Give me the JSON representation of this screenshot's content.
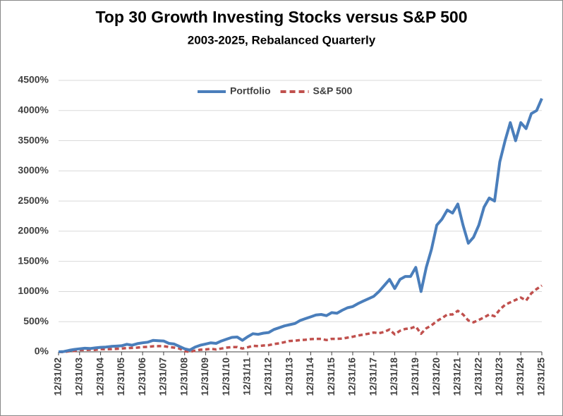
{
  "chart_data": {
    "type": "line",
    "title": "Top 30 Growth Investing Stocks versus S&P 500",
    "subtitle": "2003-2025, Rebalanced Quarterly",
    "categories": [
      "12/31/02",
      null,
      null,
      null,
      "12/31/03",
      null,
      null,
      null,
      "12/31/04",
      null,
      null,
      null,
      "12/31/05",
      null,
      null,
      null,
      "12/31/06",
      null,
      null,
      null,
      "12/31/07",
      null,
      null,
      null,
      "12/31/08",
      null,
      null,
      null,
      "12/31/09",
      null,
      null,
      null,
      "12/31/10",
      null,
      null,
      null,
      "12/31/11",
      null,
      null,
      null,
      "12/31/12",
      null,
      null,
      null,
      "12/31/13",
      null,
      null,
      null,
      "12/31/14",
      null,
      null,
      null,
      "12/31/15",
      null,
      null,
      null,
      "12/31/16",
      null,
      null,
      null,
      "12/31/17",
      null,
      null,
      null,
      "12/31/18",
      null,
      null,
      null,
      "12/31/19",
      null,
      null,
      null,
      "12/31/20",
      null,
      null,
      null,
      "12/31/21",
      null,
      null,
      null,
      "12/31/22",
      null,
      null,
      null,
      "12/31/23",
      null,
      null,
      null,
      "12/31/24",
      null,
      null,
      null,
      "12/31/25"
    ],
    "series": [
      {
        "name": "Portfolio",
        "color": "#4a7ebb",
        "dashed": false,
        "values": [
          0,
          5,
          25,
          40,
          50,
          60,
          55,
          65,
          75,
          80,
          90,
          95,
          100,
          125,
          110,
          135,
          150,
          160,
          190,
          185,
          180,
          140,
          130,
          90,
          50,
          30,
          80,
          110,
          130,
          150,
          140,
          180,
          210,
          240,
          245,
          190,
          250,
          300,
          290,
          310,
          320,
          370,
          400,
          430,
          450,
          470,
          520,
          550,
          580,
          610,
          620,
          600,
          650,
          640,
          690,
          730,
          750,
          800,
          840,
          880,
          920,
          1000,
          1100,
          1200,
          1050,
          1200,
          1250,
          1250,
          1400,
          1000,
          1400,
          1700,
          2100,
          2200,
          2350,
          2300,
          2450,
          2100,
          1800,
          1900,
          2100,
          2400,
          2550,
          2500,
          3150,
          3500,
          3800,
          3500,
          3800,
          3700,
          3950,
          4000,
          4200
        ]
      },
      {
        "name": "S&P 500",
        "color": "#c0504d",
        "dashed": true,
        "values": [
          0,
          -5,
          10,
          15,
          30,
          32,
          35,
          33,
          45,
          42,
          45,
          50,
          55,
          62,
          65,
          70,
          80,
          82,
          92,
          95,
          95,
          80,
          70,
          55,
          10,
          0,
          20,
          35,
          40,
          50,
          40,
          55,
          70,
          78,
          80,
          55,
          75,
          100,
          95,
          105,
          110,
          130,
          140,
          160,
          180,
          185,
          195,
          200,
          210,
          215,
          215,
          195,
          215,
          215,
          220,
          235,
          250,
          270,
          285,
          300,
          320,
          310,
          330,
          370,
          290,
          350,
          380,
          390,
          420,
          300,
          390,
          440,
          510,
          560,
          620,
          620,
          680,
          620,
          520,
          490,
          530,
          570,
          620,
          590,
          700,
          780,
          820,
          860,
          900,
          850,
          970,
          1040,
          1100
        ]
      }
    ],
    "ylim": [
      0,
      4500
    ],
    "yticks": [
      {
        "value": 0,
        "label": "0%"
      },
      {
        "value": 500,
        "label": "500%"
      },
      {
        "value": 1000,
        "label": "1000%"
      },
      {
        "value": 1500,
        "label": "1500%"
      },
      {
        "value": 2000,
        "label": "2000%"
      },
      {
        "value": 2500,
        "label": "2500%"
      },
      {
        "value": 3000,
        "label": "3000%"
      },
      {
        "value": 3500,
        "label": "3500%"
      },
      {
        "value": 4000,
        "label": "4000%"
      },
      {
        "value": 4500,
        "label": "4500%"
      }
    ],
    "grid": true,
    "legend": "top"
  }
}
